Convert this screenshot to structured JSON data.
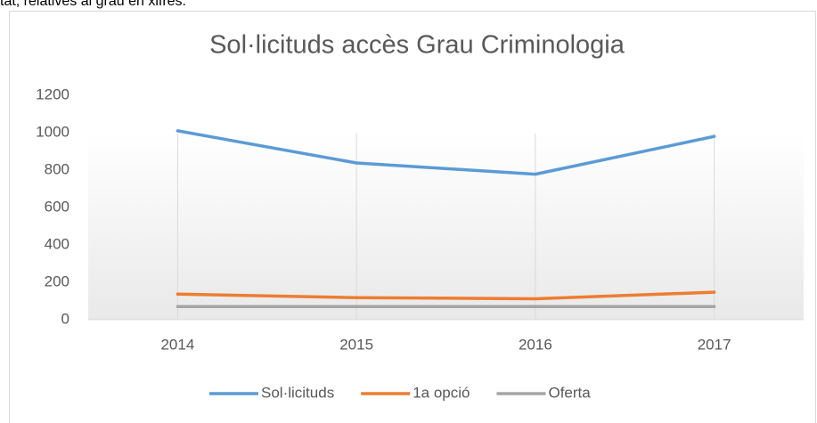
{
  "header_text": "tat, relatives al grau en xifres.",
  "chart_data": {
    "type": "line",
    "title": "Sol·licituds accès Grau Criminologia",
    "categories": [
      "2014",
      "2015",
      "2016",
      "2017"
    ],
    "series": [
      {
        "name": "Sol·licituds",
        "color": "#5b9bd5",
        "values": [
          1010,
          838,
          778,
          980
        ]
      },
      {
        "name": "1a opció",
        "color": "#ed7d31",
        "values": [
          137,
          118,
          112,
          147
        ]
      },
      {
        "name": "Oferta",
        "color": "#a5a5a5",
        "values": [
          70,
          70,
          70,
          70
        ]
      }
    ],
    "ylim": [
      0,
      1200
    ],
    "yticks": [
      0,
      200,
      400,
      600,
      800,
      1000,
      1200
    ],
    "grid": false,
    "legend": "bottom"
  }
}
